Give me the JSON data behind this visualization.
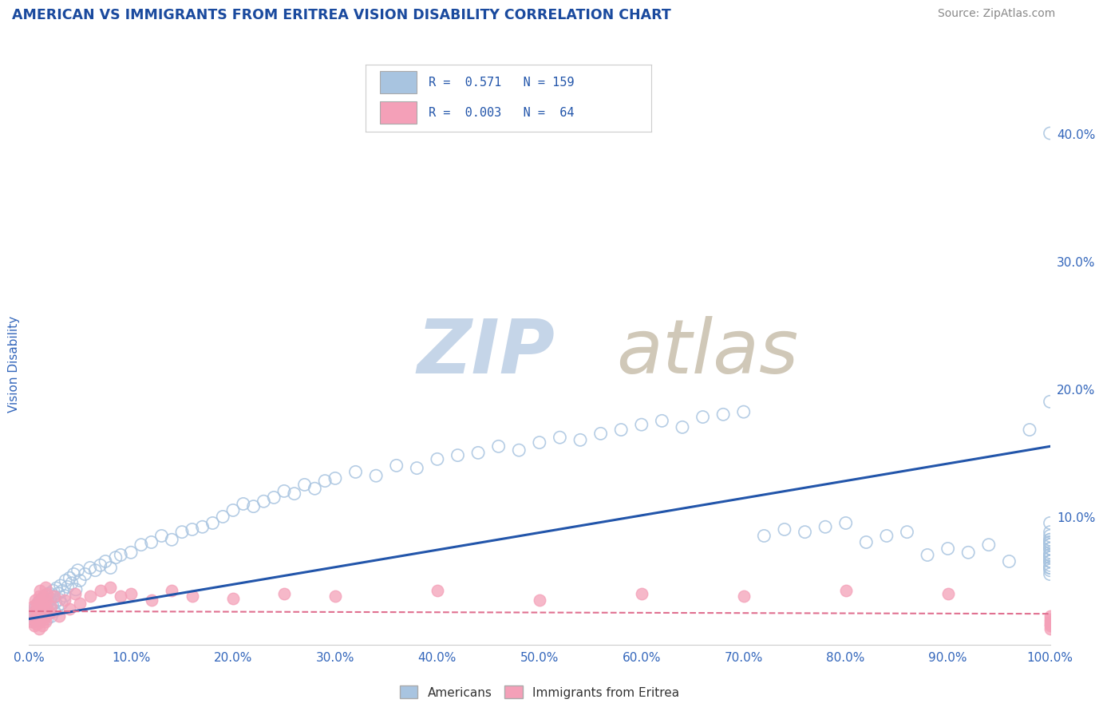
{
  "title": "AMERICAN VS IMMIGRANTS FROM ERITREA VISION DISABILITY CORRELATION CHART",
  "source_text": "Source: ZipAtlas.com",
  "ylabel": "Vision Disability",
  "watermark_zip": "ZIP",
  "watermark_atlas": "atlas",
  "legend_americans": "Americans",
  "legend_immigrants": "Immigrants from Eritrea",
  "r_americans": 0.571,
  "n_americans": 159,
  "r_immigrants": 0.003,
  "n_immigrants": 64,
  "blue_scatter_color": "#a8c4e0",
  "pink_scatter_color": "#f4a0b8",
  "blue_line_color": "#2255aa",
  "pink_line_color": "#e07090",
  "title_color": "#1a4a9e",
  "axis_label_color": "#3366bb",
  "tick_color": "#3366bb",
  "source_color": "#888888",
  "background_color": "#ffffff",
  "watermark_zip_color": "#c5d5e8",
  "watermark_atlas_color": "#d0c8b8",
  "grid_color": "#dde5f0",
  "xlim": [
    0.0,
    1.0
  ],
  "ylim": [
    0.0,
    0.44
  ],
  "xtick_values": [
    0.0,
    0.1,
    0.2,
    0.3,
    0.4,
    0.5,
    0.6,
    0.7,
    0.8,
    0.9,
    1.0
  ],
  "xticklabels": [
    "0.0%",
    "10.0%",
    "20.0%",
    "30.0%",
    "40.0%",
    "50.0%",
    "60.0%",
    "70.0%",
    "80.0%",
    "90.0%",
    "100.0%"
  ],
  "ytick_values": [
    0.0,
    0.1,
    0.2,
    0.3,
    0.4
  ],
  "yticklabels": [
    "",
    "10.0%",
    "20.0%",
    "30.0%",
    "40.0%"
  ],
  "americans_x": [
    0.003,
    0.004,
    0.005,
    0.005,
    0.006,
    0.006,
    0.007,
    0.007,
    0.008,
    0.008,
    0.009,
    0.009,
    0.01,
    0.01,
    0.01,
    0.01,
    0.011,
    0.011,
    0.011,
    0.012,
    0.012,
    0.012,
    0.013,
    0.013,
    0.013,
    0.014,
    0.014,
    0.015,
    0.015,
    0.015,
    0.016,
    0.016,
    0.017,
    0.017,
    0.018,
    0.018,
    0.019,
    0.019,
    0.02,
    0.02,
    0.021,
    0.021,
    0.022,
    0.022,
    0.023,
    0.024,
    0.025,
    0.025,
    0.026,
    0.027,
    0.028,
    0.029,
    0.03,
    0.031,
    0.032,
    0.033,
    0.035,
    0.036,
    0.038,
    0.04,
    0.042,
    0.044,
    0.046,
    0.048,
    0.05,
    0.055,
    0.06,
    0.065,
    0.07,
    0.075,
    0.08,
    0.085,
    0.09,
    0.1,
    0.11,
    0.12,
    0.13,
    0.14,
    0.15,
    0.16,
    0.17,
    0.18,
    0.19,
    0.2,
    0.21,
    0.22,
    0.23,
    0.24,
    0.25,
    0.26,
    0.27,
    0.28,
    0.29,
    0.3,
    0.32,
    0.34,
    0.36,
    0.38,
    0.4,
    0.42,
    0.44,
    0.46,
    0.48,
    0.5,
    0.52,
    0.54,
    0.56,
    0.58,
    0.6,
    0.62,
    0.64,
    0.66,
    0.68,
    0.7,
    0.72,
    0.74,
    0.76,
    0.78,
    0.8,
    0.82,
    0.84,
    0.86,
    0.88,
    0.9,
    0.92,
    0.94,
    0.96,
    0.98,
    1.0,
    1.0,
    1.0,
    1.0,
    1.0,
    1.0,
    1.0,
    1.0,
    1.0,
    1.0,
    1.0,
    1.0,
    1.0,
    1.0,
    1.0,
    1.0,
    1.0,
    1.0,
    1.0,
    1.0,
    1.0,
    1.0,
    1.0,
    1.0,
    1.0,
    1.0,
    1.0,
    1.0,
    1.0,
    1.0,
    1.0
  ],
  "americans_y": [
    0.02,
    0.018,
    0.025,
    0.022,
    0.019,
    0.028,
    0.023,
    0.03,
    0.021,
    0.026,
    0.024,
    0.032,
    0.02,
    0.027,
    0.022,
    0.033,
    0.025,
    0.031,
    0.019,
    0.028,
    0.035,
    0.024,
    0.021,
    0.03,
    0.026,
    0.023,
    0.036,
    0.029,
    0.022,
    0.034,
    0.027,
    0.038,
    0.025,
    0.032,
    0.02,
    0.028,
    0.033,
    0.024,
    0.03,
    0.04,
    0.028,
    0.035,
    0.022,
    0.038,
    0.031,
    0.042,
    0.026,
    0.037,
    0.033,
    0.044,
    0.029,
    0.04,
    0.035,
    0.046,
    0.032,
    0.042,
    0.038,
    0.05,
    0.045,
    0.052,
    0.048,
    0.055,
    0.043,
    0.058,
    0.05,
    0.055,
    0.06,
    0.058,
    0.062,
    0.065,
    0.06,
    0.068,
    0.07,
    0.072,
    0.078,
    0.08,
    0.085,
    0.082,
    0.088,
    0.09,
    0.092,
    0.095,
    0.1,
    0.105,
    0.11,
    0.108,
    0.112,
    0.115,
    0.12,
    0.118,
    0.125,
    0.122,
    0.128,
    0.13,
    0.135,
    0.132,
    0.14,
    0.138,
    0.145,
    0.148,
    0.15,
    0.155,
    0.152,
    0.158,
    0.162,
    0.16,
    0.165,
    0.168,
    0.172,
    0.175,
    0.17,
    0.178,
    0.18,
    0.182,
    0.085,
    0.09,
    0.088,
    0.092,
    0.095,
    0.08,
    0.085,
    0.088,
    0.07,
    0.075,
    0.072,
    0.078,
    0.065,
    0.168,
    0.06,
    0.065,
    0.07,
    0.075,
    0.08,
    0.068,
    0.072,
    0.078,
    0.082,
    0.065,
    0.07,
    0.075,
    0.06,
    0.065,
    0.062,
    0.068,
    0.055,
    0.06,
    0.058,
    0.065,
    0.4,
    0.19,
    0.08,
    0.07,
    0.075,
    0.08,
    0.085,
    0.078,
    0.088,
    0.082,
    0.095
  ],
  "immigrants_x": [
    0.003,
    0.004,
    0.005,
    0.005,
    0.006,
    0.006,
    0.007,
    0.007,
    0.008,
    0.008,
    0.009,
    0.009,
    0.01,
    0.01,
    0.01,
    0.01,
    0.011,
    0.011,
    0.011,
    0.012,
    0.012,
    0.013,
    0.013,
    0.014,
    0.014,
    0.015,
    0.015,
    0.016,
    0.016,
    0.017,
    0.017,
    0.018,
    0.018,
    0.02,
    0.022,
    0.025,
    0.03,
    0.035,
    0.04,
    0.045,
    0.05,
    0.06,
    0.07,
    0.08,
    0.09,
    0.1,
    0.12,
    0.14,
    0.16,
    0.2,
    0.25,
    0.3,
    0.4,
    0.5,
    0.6,
    0.7,
    0.8,
    0.9,
    1.0,
    1.0,
    1.0,
    1.0,
    1.0,
    1.0
  ],
  "immigrants_y": [
    0.018,
    0.03,
    0.015,
    0.025,
    0.035,
    0.02,
    0.028,
    0.022,
    0.032,
    0.016,
    0.026,
    0.02,
    0.038,
    0.024,
    0.03,
    0.012,
    0.028,
    0.018,
    0.042,
    0.034,
    0.022,
    0.028,
    0.015,
    0.025,
    0.038,
    0.02,
    0.032,
    0.045,
    0.018,
    0.035,
    0.022,
    0.028,
    0.04,
    0.025,
    0.03,
    0.038,
    0.022,
    0.035,
    0.028,
    0.04,
    0.032,
    0.038,
    0.042,
    0.045,
    0.038,
    0.04,
    0.035,
    0.042,
    0.038,
    0.036,
    0.04,
    0.038,
    0.042,
    0.035,
    0.04,
    0.038,
    0.042,
    0.04,
    0.015,
    0.018,
    0.012,
    0.02,
    0.016,
    0.022
  ],
  "blue_line_x0": 0.0,
  "blue_line_y0": 0.02,
  "blue_line_x1": 1.0,
  "blue_line_y1": 0.155,
  "pink_line_x0": 0.0,
  "pink_line_y0": 0.026,
  "pink_line_x1": 1.0,
  "pink_line_y1": 0.024
}
